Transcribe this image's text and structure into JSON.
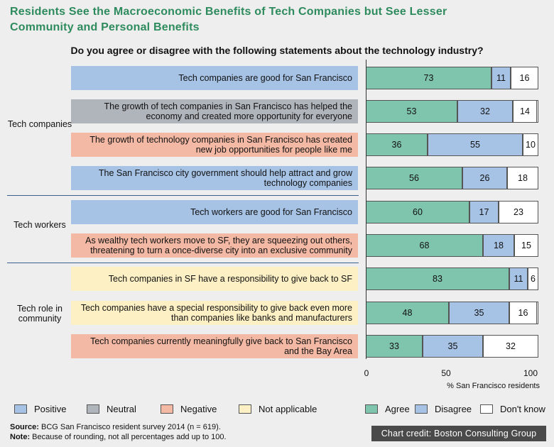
{
  "title": "Residents See the Macroeconomic Benefits of Tech Companies but See Lesser Community and Personal Benefits",
  "question": "Do you agree or disagree with the following statements about the technology industry?",
  "colors": {
    "positive": "#a6c3e6",
    "neutral": "#b0b4bb",
    "negative": "#f4b9a4",
    "not_applicable": "#fdf0c4",
    "agree": "#7fc4ad",
    "disagree": "#a6c3e6",
    "dont_know": "#ffffff"
  },
  "groups": [
    {
      "label": "Tech companies"
    },
    {
      "label": "Tech workers"
    },
    {
      "label": "Tech role in community"
    }
  ],
  "statement_rows": [
    {
      "text": "Tech companies are good for San Francisco",
      "category": "positive"
    },
    {
      "text": "The growth of tech companies in San Francisco has helped the economy and created more opportunity for everyone",
      "category": "neutral"
    },
    {
      "text": "The growth of technology companies in San Francisco has created new job opportunities for people like me",
      "category": "negative"
    },
    {
      "text": "The San Francisco city government should help attract and grow technology companies",
      "category": "positive"
    },
    {
      "text": "Tech workers are good for San Francisco",
      "category": "positive"
    },
    {
      "text": "As wealthy tech workers move to SF, they are squeezing out others, threatening to turn a once-diverse city into an exclusive community",
      "category": "negative"
    },
    {
      "text": "Tech companies in SF have a responsibility to give back to SF",
      "category": "not_applicable"
    },
    {
      "text": "Tech companies have a special responsibility to give back even more than companies like banks and manufacturers",
      "category": "not_applicable"
    },
    {
      "text": "Tech companies currently meaningfully give back to San Francisco and the Bay Area",
      "category": "negative"
    }
  ],
  "chart_data": {
    "type": "bar",
    "orientation": "horizontal",
    "stacked": true,
    "categories": [
      "Tech companies are good for San Francisco",
      "The growth of tech companies in San Francisco has helped the economy and created more opportunity for everyone",
      "The growth of technology companies in San Francisco has created new job opportunities for people like me",
      "The San Francisco city government should help attract and grow technology companies",
      "Tech workers are good for San Francisco",
      "As wealthy tech workers move to SF, they are squeezing out others, threatening to turn a once-diverse city into an exclusive community",
      "Tech companies in SF have a responsibility to give back to SF",
      "Tech companies have a special responsibility to give back even more than companies like banks and manufacturers",
      "Tech companies currently meaningfully give back to San Francisco and the Bay Area"
    ],
    "series": [
      {
        "name": "Agree",
        "values": [
          73,
          53,
          36,
          56,
          60,
          68,
          83,
          48,
          33
        ]
      },
      {
        "name": "Disagree",
        "values": [
          11,
          32,
          55,
          26,
          17,
          18,
          11,
          35,
          35
        ]
      },
      {
        "name": "Don't know",
        "values": [
          16,
          14,
          10,
          18,
          23,
          15,
          6,
          16,
          32
        ]
      }
    ],
    "xlabel": "% San Francisco residents",
    "xlim": [
      0,
      100
    ],
    "xticks": [
      "0",
      "50",
      "100"
    ],
    "legend": "bottom"
  },
  "legend_categories": [
    {
      "label": "Positive",
      "color_key": "positive"
    },
    {
      "label": "Neutral",
      "color_key": "neutral"
    },
    {
      "label": "Negative",
      "color_key": "negative"
    },
    {
      "label": "Not applicable",
      "color_key": "not_applicable"
    }
  ],
  "legend_series": [
    {
      "label": "Agree",
      "color_key": "agree"
    },
    {
      "label": "Disagree",
      "color_key": "disagree"
    },
    {
      "label": "Don't know",
      "color_key": "dont_know"
    }
  ],
  "source": {
    "label": "Source:",
    "text": "BCG San Francisco resident survey 2014 (n = 619)."
  },
  "note": {
    "label": "Note:",
    "text": "Because of rounding, not all percentages add up to 100."
  },
  "credit": "Chart credit: Boston Consulting Group"
}
